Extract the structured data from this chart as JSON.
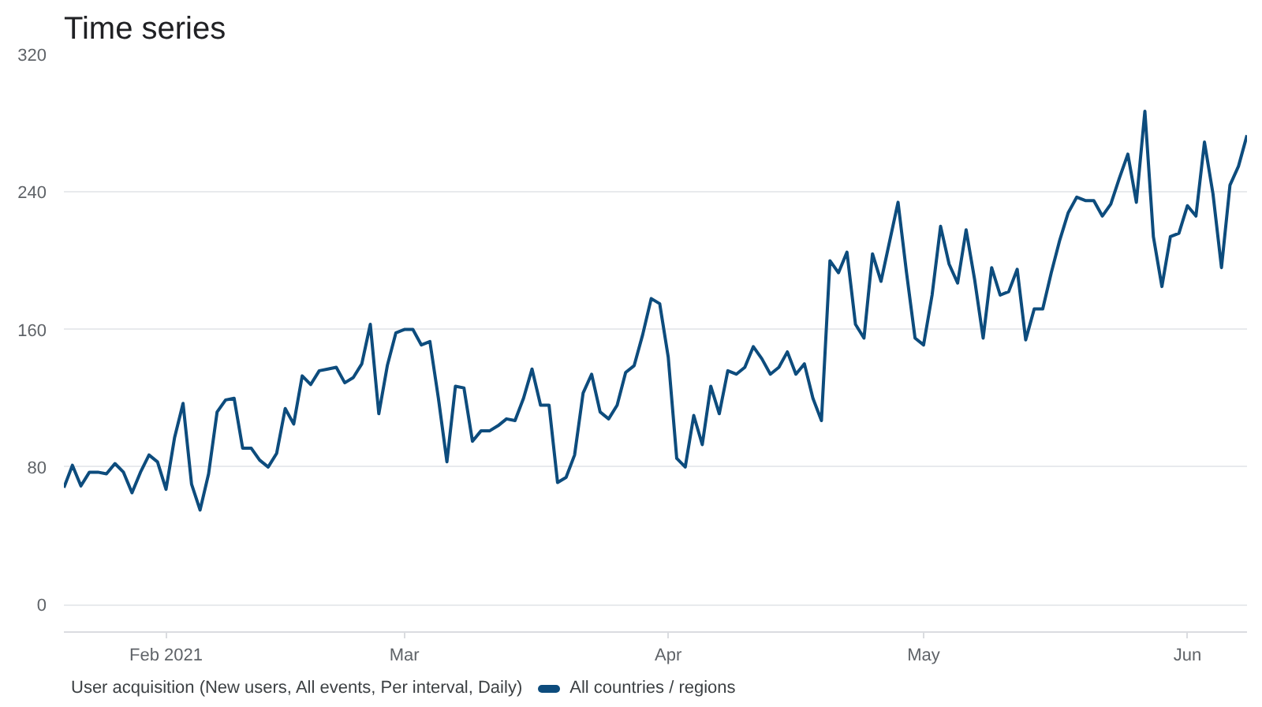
{
  "chart_data": {
    "type": "line",
    "title": "Time series",
    "legend_title": "User acquisition (New users, All events, Per interval, Daily)",
    "x": [
      "2021-01-20",
      "2021-01-21",
      "2021-01-22",
      "2021-01-23",
      "2021-01-24",
      "2021-01-25",
      "2021-01-26",
      "2021-01-27",
      "2021-01-28",
      "2021-01-29",
      "2021-01-30",
      "2021-01-31",
      "2021-02-01",
      "2021-02-02",
      "2021-02-03",
      "2021-02-04",
      "2021-02-05",
      "2021-02-06",
      "2021-02-07",
      "2021-02-08",
      "2021-02-09",
      "2021-02-10",
      "2021-02-11",
      "2021-02-12",
      "2021-02-13",
      "2021-02-14",
      "2021-02-15",
      "2021-02-16",
      "2021-02-17",
      "2021-02-18",
      "2021-02-19",
      "2021-02-20",
      "2021-02-21",
      "2021-02-22",
      "2021-02-23",
      "2021-02-24",
      "2021-02-25",
      "2021-02-26",
      "2021-02-27",
      "2021-02-28",
      "2021-03-01",
      "2021-03-02",
      "2021-03-03",
      "2021-03-04",
      "2021-03-05",
      "2021-03-06",
      "2021-03-07",
      "2021-03-08",
      "2021-03-09",
      "2021-03-10",
      "2021-03-11",
      "2021-03-12",
      "2021-03-13",
      "2021-03-14",
      "2021-03-15",
      "2021-03-16",
      "2021-03-17",
      "2021-03-18",
      "2021-03-19",
      "2021-03-20",
      "2021-03-21",
      "2021-03-22",
      "2021-03-23",
      "2021-03-24",
      "2021-03-25",
      "2021-03-26",
      "2021-03-27",
      "2021-03-28",
      "2021-03-29",
      "2021-03-30",
      "2021-03-31",
      "2021-04-01",
      "2021-04-02",
      "2021-04-03",
      "2021-04-04",
      "2021-04-05",
      "2021-04-06",
      "2021-04-07",
      "2021-04-08",
      "2021-04-09",
      "2021-04-10",
      "2021-04-11",
      "2021-04-12",
      "2021-04-13",
      "2021-04-14",
      "2021-04-15",
      "2021-04-16",
      "2021-04-17",
      "2021-04-18",
      "2021-04-19",
      "2021-04-20",
      "2021-04-21",
      "2021-04-22",
      "2021-04-23",
      "2021-04-24",
      "2021-04-25",
      "2021-04-26",
      "2021-04-27",
      "2021-04-28",
      "2021-04-29",
      "2021-04-30",
      "2021-05-01",
      "2021-05-02",
      "2021-05-03",
      "2021-05-04",
      "2021-05-05",
      "2021-05-06",
      "2021-05-07",
      "2021-05-08",
      "2021-05-09",
      "2021-05-10",
      "2021-05-11",
      "2021-05-12",
      "2021-05-13",
      "2021-05-14",
      "2021-05-15",
      "2021-05-16",
      "2021-05-17",
      "2021-05-18",
      "2021-05-19",
      "2021-05-20",
      "2021-05-21",
      "2021-05-22",
      "2021-05-23",
      "2021-05-24",
      "2021-05-25",
      "2021-05-26",
      "2021-05-27",
      "2021-05-28",
      "2021-05-29",
      "2021-05-30",
      "2021-05-31",
      "2021-06-01",
      "2021-06-02",
      "2021-06-03",
      "2021-06-04",
      "2021-06-05",
      "2021-06-06",
      "2021-06-07",
      "2021-06-08"
    ],
    "series": [
      {
        "name": "All countries / regions",
        "color": "#0d4c7d",
        "values": [
          68,
          81,
          69,
          77,
          77,
          76,
          82,
          77,
          65,
          77,
          87,
          83,
          67,
          97,
          117,
          70,
          55,
          76,
          112,
          119,
          120,
          91,
          91,
          84,
          80,
          88,
          114,
          105,
          133,
          128,
          136,
          137,
          138,
          129,
          132,
          140,
          163,
          111,
          139,
          158,
          160,
          160,
          151,
          153,
          120,
          83,
          127,
          126,
          95,
          101,
          101,
          104,
          108,
          107,
          120,
          137,
          116,
          116,
          71,
          74,
          87,
          123,
          134,
          112,
          108,
          116,
          135,
          139,
          157,
          178,
          175,
          144,
          85,
          80,
          110,
          93,
          127,
          111,
          136,
          134,
          138,
          150,
          143,
          134,
          138,
          147,
          134,
          140,
          120,
          107,
          200,
          193,
          205,
          163,
          155,
          204,
          188,
          211,
          234,
          193,
          155,
          151,
          180,
          220,
          198,
          187,
          218,
          189,
          155,
          196,
          180,
          182,
          195,
          154,
          172,
          172,
          193,
          212,
          228,
          237,
          235,
          235,
          226,
          233,
          248,
          262,
          234,
          287,
          214,
          185,
          214,
          216,
          232,
          226,
          269,
          239,
          196,
          244,
          255,
          273
        ]
      }
    ],
    "xlim": [
      "2021-01-20",
      "2021-06-08"
    ],
    "xticks": [
      {
        "value": "2021-02-01",
        "label": "Feb 2021"
      },
      {
        "value": "2021-03-01",
        "label": "Mar"
      },
      {
        "value": "2021-04-01",
        "label": "Apr"
      },
      {
        "value": "2021-05-01",
        "label": "May"
      },
      {
        "value": "2021-06-01",
        "label": "Jun"
      }
    ],
    "ylim": [
      -16,
      320
    ],
    "yticks": [
      0,
      80,
      160,
      240,
      320
    ],
    "grid": "y",
    "legend": "bottom",
    "marker": "none",
    "line_style": "solid"
  }
}
